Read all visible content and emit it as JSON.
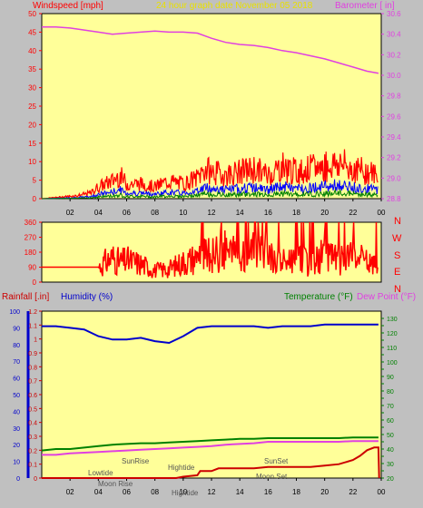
{
  "header": {
    "left_label": "Windspeed [mph]",
    "center_label": "24 hour graph date   November 05 2018",
    "right_label": "Barometer [ in]"
  },
  "wind_panel_letters": [
    "N",
    "W",
    "S",
    "E",
    "N"
  ],
  "bottom_labels": {
    "rainfall": "Rainfall [.in]",
    "humidity": "Humidity (%)",
    "temperature": "Temperature (°F)",
    "dewpoint": "Dew Point (°F)"
  },
  "events": {
    "lowtide": "Lowtide",
    "moonrise": "Moon Rise",
    "sunrise": "SunRise",
    "hightide1": "Hightide",
    "hightide2": "Hightide",
    "sunset": "SunSet",
    "moonset": "Moon Set"
  },
  "colors": {
    "panel_bg": "#ffff99",
    "frame_bg": "#c0c0c0",
    "wind_gust": "#ff0000",
    "wind_avg": "#0000ff",
    "wind_low": "#008000",
    "barometer": "#e040e0",
    "direction": "#ff0000",
    "rain": "#cc0000",
    "humidity": "#0000cc",
    "temperature": "#008000",
    "dewpoint": "#e040e0",
    "header_red": "#ff0000",
    "header_yellow": "#e8e000"
  },
  "chart_data": [
    {
      "type": "line",
      "title": "24 hour graph date   November 05 2018",
      "x_ticks": [
        "02",
        "04",
        "06",
        "08",
        "10",
        "12",
        "14",
        "16",
        "18",
        "20",
        "22",
        "00"
      ],
      "xlim": [
        0,
        24
      ],
      "left_axis": {
        "label": "Windspeed [mph]",
        "ylim": [
          0,
          50
        ],
        "ticks": [
          0,
          5,
          10,
          15,
          20,
          25,
          30,
          35,
          40,
          45,
          50
        ]
      },
      "right_axis": {
        "label": "Barometer [ in]",
        "ylim": [
          28.8,
          30.6
        ],
        "ticks": [
          28.8,
          29.0,
          29.2,
          29.4,
          29.6,
          29.8,
          30.0,
          30.2,
          30.4,
          30.6
        ]
      },
      "series": [
        {
          "name": "Windspeed",
          "axis": "left",
          "x": [
            0,
            2.5,
            3.5,
            4,
            5,
            5.5,
            6,
            7,
            8,
            9,
            10,
            11,
            11.5,
            12,
            13,
            14,
            15,
            16,
            17,
            18,
            19,
            20,
            21,
            22,
            23,
            23.8
          ],
          "y": [
            0,
            1,
            2,
            4,
            6,
            8,
            5,
            5,
            4,
            6,
            5,
            7,
            10,
            9,
            8,
            9,
            10,
            8,
            11,
            9,
            10,
            11,
            12,
            10,
            9,
            8
          ]
        },
        {
          "name": "Barometer",
          "axis": "right",
          "x": [
            0,
            1,
            2,
            3,
            4,
            5,
            6,
            7,
            8,
            9,
            10,
            11,
            12,
            13,
            14,
            15,
            16,
            17,
            18,
            19,
            20,
            21,
            22,
            23,
            23.8
          ],
          "y": [
            30.47,
            30.47,
            30.46,
            30.44,
            30.42,
            30.4,
            30.41,
            30.42,
            30.43,
            30.42,
            30.42,
            30.41,
            30.36,
            30.32,
            30.3,
            30.29,
            30.27,
            30.24,
            30.22,
            30.19,
            30.16,
            30.12,
            30.08,
            30.04,
            30.02
          ]
        }
      ]
    },
    {
      "type": "line",
      "title": "",
      "x_ticks": [],
      "xlim": [
        0,
        24
      ],
      "left_axis": {
        "label": "",
        "ylim": [
          0,
          360
        ],
        "ticks": [
          0,
          45,
          90,
          135,
          180,
          225,
          270,
          315,
          360
        ]
      },
      "right_axis_letters": [
        "N",
        "W",
        "S",
        "E",
        "N"
      ],
      "series": [
        {
          "name": "Wind Direction",
          "x": [
            0,
            2,
            4,
            5,
            5.5,
            6,
            7,
            8,
            9,
            10,
            11,
            12,
            13,
            14,
            15,
            16,
            17,
            18,
            19,
            20,
            21,
            22,
            23,
            23.8
          ],
          "y": [
            90,
            90,
            90,
            150,
            120,
            130,
            110,
            70,
            80,
            120,
            150,
            160,
            200,
            140,
            180,
            150,
            120,
            160,
            100,
            180,
            130,
            150,
            120,
            90
          ]
        }
      ]
    },
    {
      "type": "line",
      "title": "",
      "x_ticks": [
        "02",
        "04",
        "06",
        "08",
        "10",
        "12",
        "14",
        "16",
        "18",
        "20",
        "22",
        "00"
      ],
      "xlim": [
        0,
        24
      ],
      "left_axis_rain": {
        "label": "Rainfall [.in]",
        "ylim": [
          0,
          1.2
        ],
        "ticks": [
          0,
          0.1,
          0.2,
          0.3,
          0.4,
          0.5,
          0.6,
          0.7,
          0.8,
          0.9,
          1.0,
          1.1,
          1.2
        ]
      },
      "left_axis_humidity": {
        "label": "Humidity (%)",
        "ylim": [
          0,
          100
        ],
        "ticks": [
          0,
          10,
          20,
          30,
          40,
          50,
          60,
          70,
          80,
          90,
          100
        ]
      },
      "right_axis": {
        "label": "Temperature (°F)",
        "ylim": [
          20,
          135
        ],
        "ticks": [
          20,
          25,
          30,
          35,
          40,
          45,
          50,
          55,
          60,
          65,
          70,
          75,
          80,
          85,
          90,
          95,
          100,
          105,
          110,
          115,
          120,
          125,
          130
        ]
      },
      "series": [
        {
          "name": "Humidity",
          "axis": "humidity",
          "x": [
            0,
            1,
            2,
            3,
            4,
            5,
            6,
            7,
            8,
            9,
            10,
            11,
            12,
            13,
            14,
            15,
            16,
            17,
            18,
            19,
            20,
            21,
            22,
            23,
            23.8
          ],
          "y": [
            91,
            91,
            90,
            89,
            85,
            83,
            83,
            84,
            82,
            81,
            85,
            90,
            91,
            91,
            91,
            91,
            90,
            91,
            91,
            91,
            92,
            92,
            92,
            92,
            92
          ]
        },
        {
          "name": "Temperature",
          "axis": "right",
          "x": [
            0,
            1,
            2,
            3,
            4,
            5,
            6,
            7,
            8,
            9,
            10,
            11,
            12,
            13,
            14,
            15,
            16,
            17,
            18,
            19,
            20,
            21,
            22,
            23,
            23.8
          ],
          "y": [
            39,
            40,
            40,
            41,
            42,
            43,
            43.5,
            44,
            44,
            44.5,
            45,
            45.5,
            46,
            46.5,
            47,
            47,
            47.5,
            47.5,
            47.5,
            47.5,
            47.5,
            47.5,
            48,
            48,
            48
          ]
        },
        {
          "name": "Dew Point",
          "axis": "right",
          "x": [
            0,
            1,
            2,
            3,
            4,
            5,
            6,
            7,
            8,
            9,
            10,
            11,
            12,
            13,
            14,
            15,
            16,
            17,
            18,
            19,
            20,
            21,
            22,
            23,
            23.8
          ],
          "y": [
            36,
            36,
            37,
            37.5,
            38,
            38.5,
            39,
            39.5,
            40,
            40.5,
            41,
            41.5,
            42,
            43,
            43.5,
            44,
            45,
            45,
            45,
            45,
            45,
            45,
            45.5,
            45.5,
            45.5
          ]
        },
        {
          "name": "Rainfall",
          "axis": "rain",
          "x": [
            0,
            9.5,
            10,
            11,
            11.2,
            12,
            12.5,
            13,
            15,
            16,
            17,
            18,
            19,
            20,
            21,
            22,
            22.5,
            23,
            23.5,
            23.8,
            23.85
          ],
          "y": [
            0,
            0,
            0.01,
            0.02,
            0.05,
            0.05,
            0.07,
            0.07,
            0.07,
            0.08,
            0.08,
            0.08,
            0.08,
            0.09,
            0.1,
            0.13,
            0.16,
            0.2,
            0.22,
            0.22,
            0.0
          ]
        }
      ]
    }
  ]
}
